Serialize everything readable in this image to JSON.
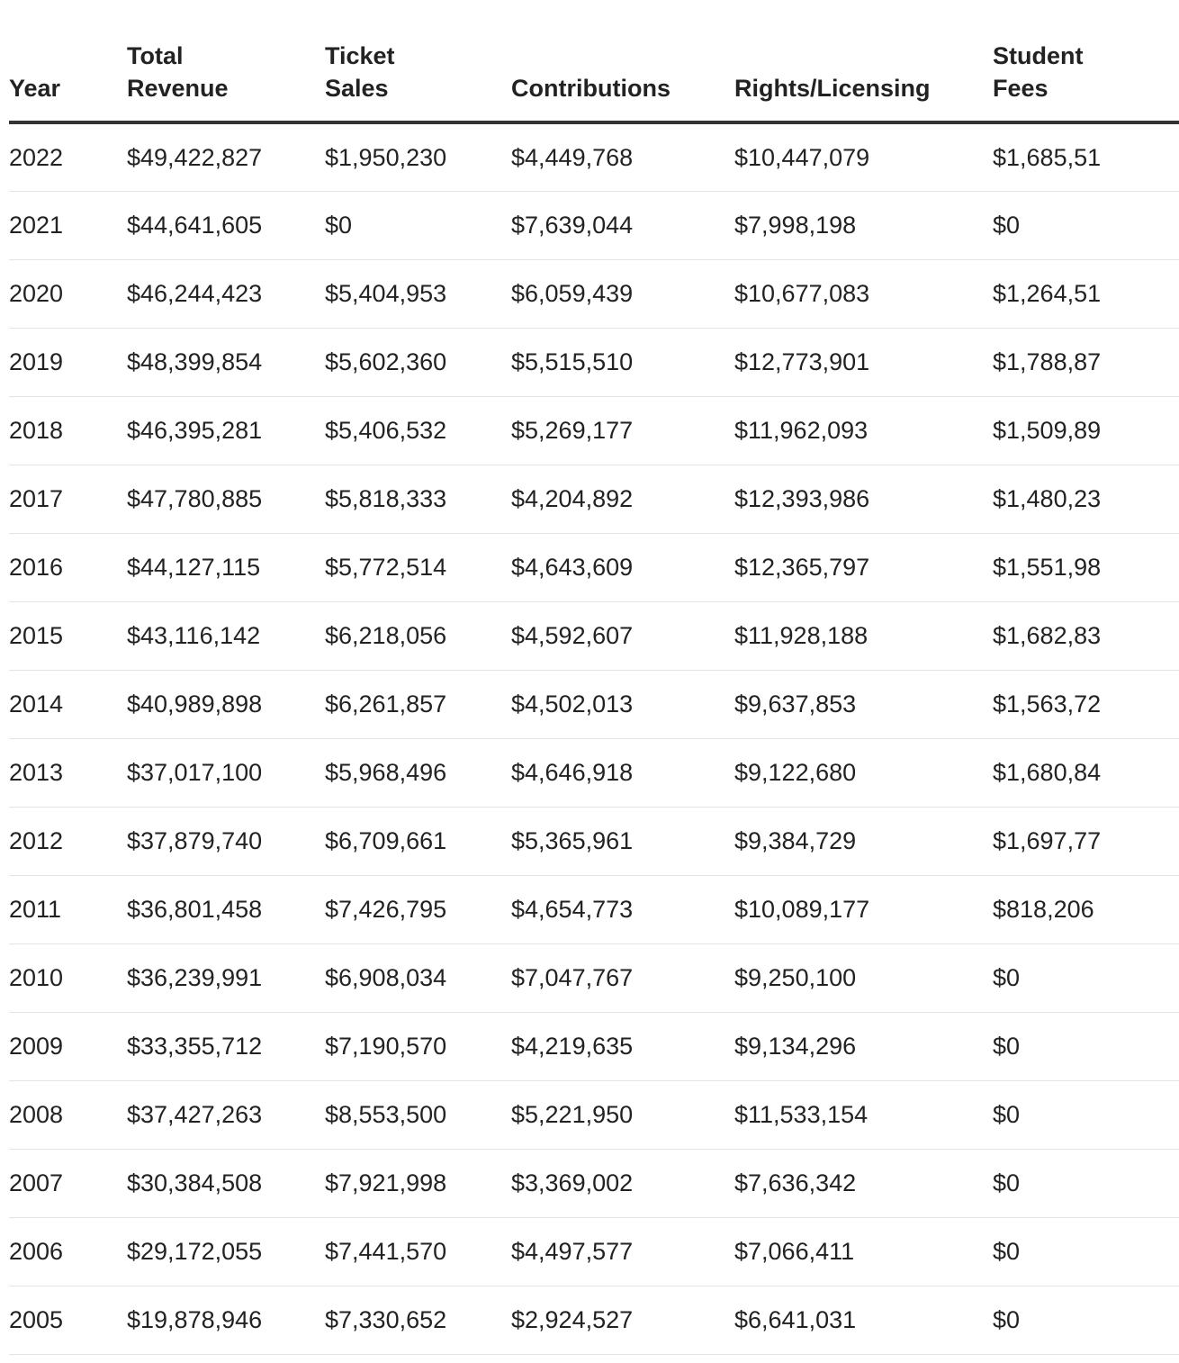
{
  "table": {
    "headers": [
      [
        "Year"
      ],
      [
        "Total",
        "Revenue"
      ],
      [
        "Ticket",
        "Sales"
      ],
      [
        "Contributions"
      ],
      [
        "Rights/Licensing"
      ],
      [
        "Student",
        "Fees"
      ]
    ],
    "rows": [
      [
        "2022",
        "$49,422,827",
        "$1,950,230",
        "$4,449,768",
        "$10,447,079",
        "$1,685,51"
      ],
      [
        "2021",
        "$44,641,605",
        "$0",
        "$7,639,044",
        "$7,998,198",
        "$0"
      ],
      [
        "2020",
        "$46,244,423",
        "$5,404,953",
        "$6,059,439",
        "$10,677,083",
        "$1,264,51"
      ],
      [
        "2019",
        "$48,399,854",
        "$5,602,360",
        "$5,515,510",
        "$12,773,901",
        "$1,788,87"
      ],
      [
        "2018",
        "$46,395,281",
        "$5,406,532",
        "$5,269,177",
        "$11,962,093",
        "$1,509,89"
      ],
      [
        "2017",
        "$47,780,885",
        "$5,818,333",
        "$4,204,892",
        "$12,393,986",
        "$1,480,23"
      ],
      [
        "2016",
        "$44,127,115",
        "$5,772,514",
        "$4,643,609",
        "$12,365,797",
        "$1,551,98"
      ],
      [
        "2015",
        "$43,116,142",
        "$6,218,056",
        "$4,592,607",
        "$11,928,188",
        "$1,682,83"
      ],
      [
        "2014",
        "$40,989,898",
        "$6,261,857",
        "$4,502,013",
        "$9,637,853",
        "$1,563,72"
      ],
      [
        "2013",
        "$37,017,100",
        "$5,968,496",
        "$4,646,918",
        "$9,122,680",
        "$1,680,84"
      ],
      [
        "2012",
        "$37,879,740",
        "$6,709,661",
        "$5,365,961",
        "$9,384,729",
        "$1,697,77"
      ],
      [
        "2011",
        "$36,801,458",
        "$7,426,795",
        "$4,654,773",
        "$10,089,177",
        "$818,206"
      ],
      [
        "2010",
        "$36,239,991",
        "$6,908,034",
        "$7,047,767",
        "$9,250,100",
        "$0"
      ],
      [
        "2009",
        "$33,355,712",
        "$7,190,570",
        "$4,219,635",
        "$9,134,296",
        "$0"
      ],
      [
        "2008",
        "$37,427,263",
        "$8,553,500",
        "$5,221,950",
        "$11,533,154",
        "$0"
      ],
      [
        "2007",
        "$30,384,508",
        "$7,921,998",
        "$3,369,002",
        "$7,636,342",
        "$0"
      ],
      [
        "2006",
        "$29,172,055",
        "$7,441,570",
        "$4,497,577",
        "$7,066,411",
        "$0"
      ],
      [
        "2005",
        "$19,878,946",
        "$7,330,652",
        "$2,924,527",
        "$6,641,031",
        "$0"
      ]
    ]
  }
}
